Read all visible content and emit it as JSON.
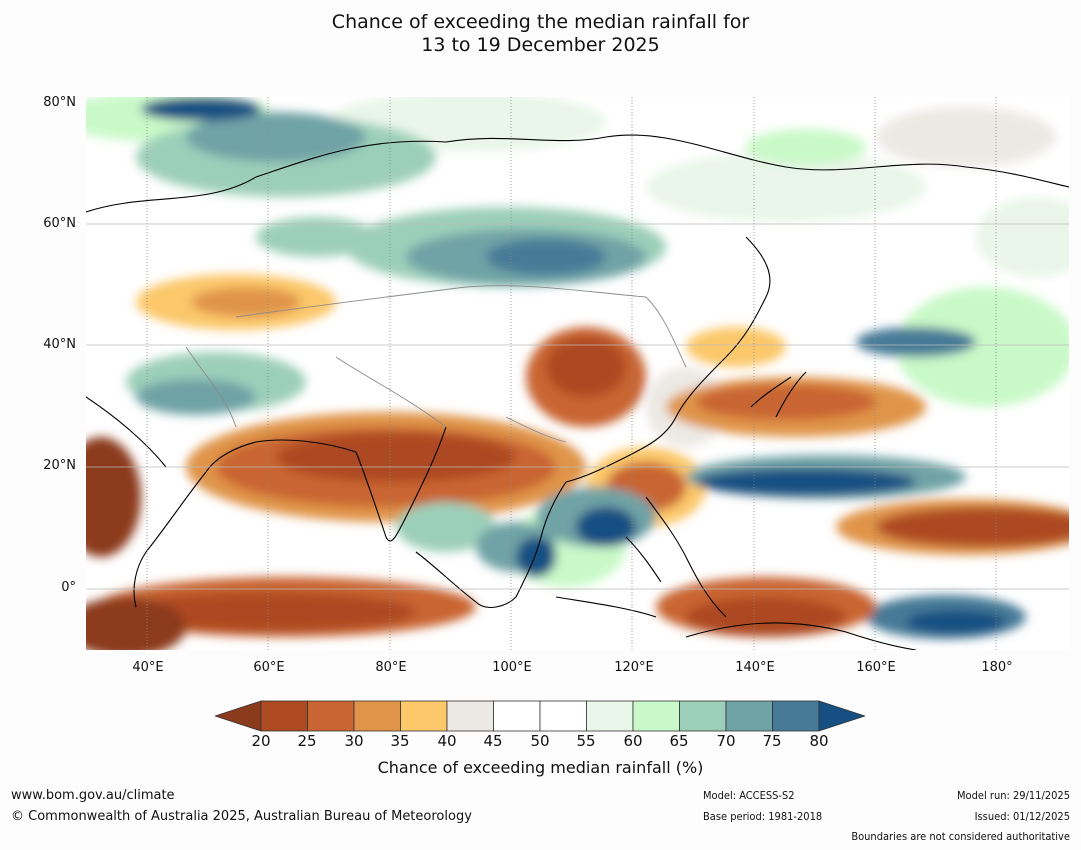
{
  "title": {
    "line1": "Chance of exceeding the median rainfall for",
    "line2": "13 to 19 December 2025"
  },
  "map": {
    "lat_labels": [
      "80°N",
      "60°N",
      "40°N",
      "20°N",
      "0°"
    ],
    "lon_labels": [
      "40°E",
      "60°E",
      "80°E",
      "100°E",
      "120°E",
      "140°E",
      "160°E",
      "180°"
    ],
    "extent": {
      "lon_min": 30,
      "lon_max": 192,
      "lat_min": -10,
      "lat_max": 81
    }
  },
  "colorbar": {
    "ticks": [
      "20",
      "25",
      "30",
      "35",
      "40",
      "45",
      "50",
      "55",
      "60",
      "65",
      "70",
      "75",
      "80"
    ],
    "colors": [
      "#8c3a1c",
      "#ad4a22",
      "#c96532",
      "#e0944a",
      "#fcc86a",
      "#ece9e4",
      "#ffffff",
      "#ffffff",
      "#e9f6e9",
      "#c9f9c8",
      "#9ccfba",
      "#6fa3a6",
      "#467a97",
      "#184f82"
    ],
    "label": "Chance of exceeding median rainfall (%)"
  },
  "footer": {
    "url": "www.bom.gov.au/climate",
    "copyright": "© Commonwealth of Australia 2025, Australian Bureau of Meteorology",
    "model": "Model: ACCESS-S2",
    "base_period": "Base period: 1981-2018",
    "model_run": "Model run: 29/11/2025",
    "issued": "Issued: 01/12/2025",
    "disclaimer": "Boundaries are not considered authoritative"
  }
}
